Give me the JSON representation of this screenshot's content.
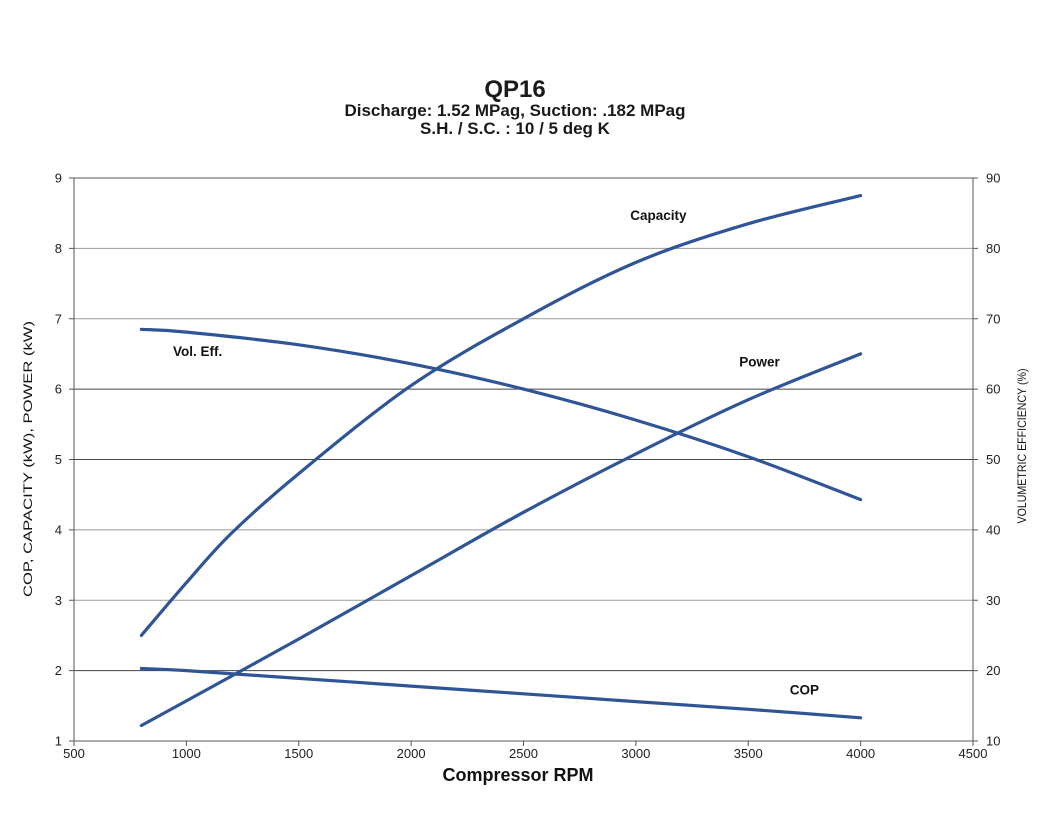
{
  "chart_data": {
    "type": "line",
    "title": "QP16",
    "subtitle_lines": [
      "Discharge: 1.52 MPag, Suction: .182 MPag",
      "S.H. / S.C. : 10 / 5 deg K"
    ],
    "xlabel": "Compressor RPM",
    "ylabel_left": "COP, CAPACITY (kW), POWER (kW)",
    "ylabel_right": "VOLUMETRIC EFFICIENCY (%)",
    "xlim": [
      500,
      4500
    ],
    "ylim_left": [
      1,
      9
    ],
    "ylim_right": [
      10,
      90
    ],
    "xticks": [
      "500",
      "1000",
      "1500",
      "2000",
      "2500",
      "3000",
      "3500",
      "4000",
      "4500"
    ],
    "yticks_left": [
      "1",
      "2",
      "3",
      "4",
      "5",
      "6",
      "7",
      "8",
      "9"
    ],
    "yticks_right": [
      "10",
      "20",
      "30",
      "40",
      "50",
      "60",
      "70",
      "80",
      "90"
    ],
    "grid": true,
    "line_color": "#2f5597",
    "series": [
      {
        "name": "Capacity",
        "axis": "left",
        "x": [
          800,
          1000,
          1200,
          1500,
          2000,
          2500,
          3000,
          3500,
          4000
        ],
        "y": [
          2.5,
          3.25,
          3.95,
          4.8,
          6.05,
          7.0,
          7.8,
          8.35,
          8.75
        ]
      },
      {
        "name": "Power",
        "axis": "left",
        "x": [
          800,
          1000,
          1500,
          2000,
          2500,
          3000,
          3500,
          4000
        ],
        "y": [
          1.22,
          1.57,
          2.45,
          3.35,
          4.25,
          5.08,
          5.85,
          6.5
        ]
      },
      {
        "name": "Vol. Eff.",
        "axis": "right",
        "x": [
          800,
          1000,
          1500,
          2000,
          2500,
          3000,
          3500,
          4000
        ],
        "y": [
          68.5,
          68.1,
          66.3,
          63.6,
          60.0,
          55.6,
          50.4,
          44.3
        ]
      },
      {
        "name": "COP",
        "axis": "left",
        "x": [
          800,
          1000,
          1500,
          2000,
          2500,
          3000,
          3500,
          4000
        ],
        "y": [
          2.03,
          2.0,
          1.89,
          1.78,
          1.67,
          1.56,
          1.45,
          1.33
        ]
      }
    ],
    "annotations": [
      {
        "text": "Capacity",
        "series": "Capacity"
      },
      {
        "text": "Power",
        "series": "Power"
      },
      {
        "text": "Vol. Eff.",
        "series": "Vol. Eff."
      },
      {
        "text": "COP",
        "series": "COP"
      }
    ]
  }
}
